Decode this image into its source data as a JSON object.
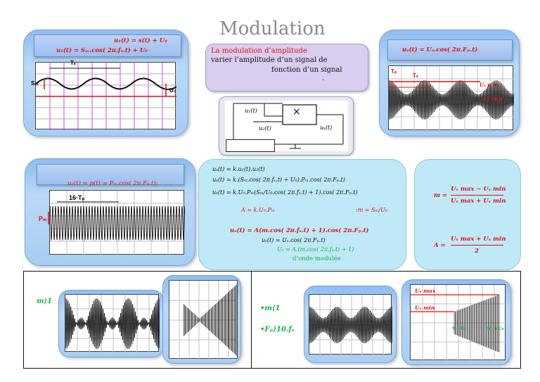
{
  "title": "Modulation",
  "definition": {
    "heading": "La modulation d’amplitude",
    "line1": "varier l’amplitude d’un signal de",
    "line2": "fonction d’un signal",
    "dot": "."
  },
  "carrier_card": {
    "eq1": "u₁(t) = s(t) + U₀",
    "eq2": "u₁(t) = Sₘ.cos( 2π.fₛ.t) + U₀",
    "label_period": "Tₛ",
    "label_amp": "Sₘ",
    "label_offset": "U₀"
  },
  "modulated_card": {
    "eq": "uₛ(t) = Uₛ.cos( 2π.Fₚ.t)",
    "label_tp": "Tₚ",
    "label_ts": "Tₛ",
    "label_max": "Uₛ max",
    "label_min": "Uₛ min"
  },
  "multiplier_card": {
    "in1": "u₁(t)",
    "in2": "u₂(t)",
    "out": "uₛ(t)",
    "symbol": "×"
  },
  "porteuse_card": {
    "eq": "u₂(t) = p(t) = Pₘ.cos( 2π.Fₚ.t):",
    "label_period": "16·Tₚ",
    "label_amp": "Pₘ"
  },
  "derivation": {
    "l1": "uₛ(t) = k.u₁(t).u₂(t)",
    "l2": "uₛ(t) = k.(Sₘ.cos( 2π.fₛ.t) + U₀).Pₘ.cos( 2π.Fₚ.t)",
    "l3": "uₛ(t) = k.U₀.Pₘ(Sₘ/U₀.cos( 2π.fₛ.t) + 1).cos( 2π.Fₚ.t)",
    "l4a": "A = k.U₀.Pₘ",
    "l4b": ":m = Sₘ/U₀",
    "l5": "uₛ(t) = A(m.cos( 2π.fₛ.t) + 1).cos( 2π.Fₚ.t)",
    "l6": "uₛ(t) = Uₛ.cos( 2π.Fₚ.t)",
    "l7": "Uₛ = A.(m.cos( 2π.fₛ.t) + 1)",
    "l8": "d’onde modulée"
  },
  "formulas": {
    "m_label": "m =",
    "m_num": "Uₛ max − Uₛ min",
    "m_den": "Uₛ max + Uₛ min",
    "a_label": "A =",
    "a_num": "Uₛ max + Uₛ min",
    "a_den": "2"
  },
  "bottom": {
    "over_label": "m⟩1",
    "under_label1": "•m⟨1",
    "under_label2": "•Fₚ⟩10.fₛ",
    "trap_max": "Uₛ max",
    "trap_min": "Uₛ min",
    "trap_left": "Sₘ-U₀",
    "trap_right": "Sₘ+U₀"
  },
  "colors": {
    "red": "#e01010",
    "blue": "#1f3fbf",
    "green": "#19b24a",
    "card": "#a8cdf3",
    "cyan": "#bfe9f7",
    "lavender": "#d9cdf0"
  }
}
